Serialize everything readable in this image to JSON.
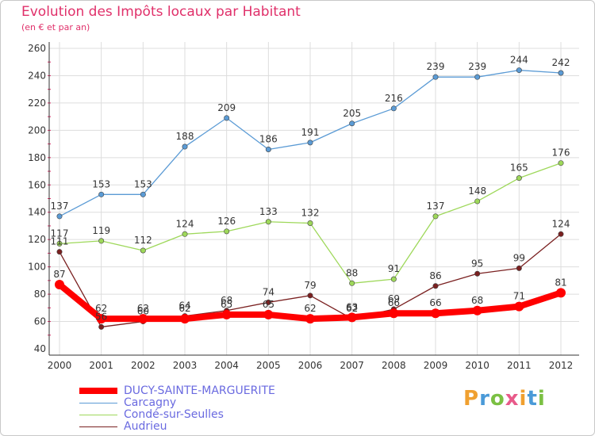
{
  "title": "Evolution des Impôts locaux par Habitant",
  "subtitle": "(en € et par an)",
  "logo": "Proxiti",
  "chart_data": {
    "type": "line",
    "x": [
      "2000",
      "2001",
      "2002",
      "2003",
      "2004",
      "2005",
      "2006",
      "2007",
      "2008",
      "2009",
      "2010",
      "2011",
      "2012"
    ],
    "ylim": [
      40,
      260
    ],
    "yticks": [
      40,
      60,
      80,
      100,
      120,
      140,
      160,
      180,
      200,
      220,
      240,
      260
    ],
    "grid": true,
    "legend_position": "bottom-left",
    "series": [
      {
        "name": "DUCY-SAINTE-MARGUERITE",
        "color": "#ff0000",
        "values": [
          87,
          62,
          62,
          62,
          65,
          65,
          62,
          63,
          66,
          66,
          68,
          71,
          81
        ]
      },
      {
        "name": "Carcagny",
        "color": "#5b9bd5",
        "values": [
          137,
          153,
          153,
          188,
          209,
          186,
          191,
          205,
          216,
          239,
          239,
          244,
          242
        ]
      },
      {
        "name": "Condé-sur-Seulles",
        "color": "#9ed85a",
        "values": [
          117,
          119,
          112,
          124,
          126,
          133,
          132,
          88,
          91,
          137,
          148,
          165,
          176
        ]
      },
      {
        "name": "Audrieu",
        "color": "#7a2020",
        "values": [
          111,
          56,
          60,
          64,
          68,
          74,
          79,
          62,
          69,
          86,
          95,
          99,
          124
        ]
      }
    ]
  },
  "colors": {
    "title": "#e0306a",
    "grid": "#dddddd",
    "axis_text": "#333333",
    "legend_text": "#6a6ae0"
  }
}
